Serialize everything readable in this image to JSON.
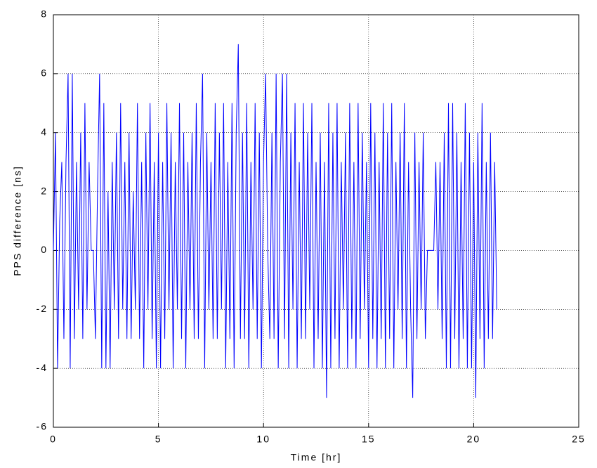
{
  "chart_data": {
    "type": "line",
    "xlabel": "Time [hr]",
    "ylabel": "PPS difference [ns]",
    "xlim": [
      0,
      25
    ],
    "xticks": [
      0,
      5,
      10,
      15,
      20,
      25
    ],
    "ylim": [
      -6,
      8
    ],
    "yticks": [
      -6,
      -4,
      -2,
      0,
      2,
      4,
      6,
      8
    ],
    "grid": true,
    "color": "#0000ff",
    "x": [
      0,
      0.1,
      0.2,
      0.3,
      0.4,
      0.5,
      0.6,
      0.7,
      0.8,
      0.9,
      1,
      1.1,
      1.2,
      1.3,
      1.4,
      1.5,
      1.6,
      1.7,
      1.8,
      1.9,
      2,
      2.1,
      2.2,
      2.3,
      2.4,
      2.5,
      2.6,
      2.7,
      2.8,
      2.9,
      3,
      3.1,
      3.2,
      3.3,
      3.4,
      3.5,
      3.6,
      3.7,
      3.8,
      3.9,
      4,
      4.1,
      4.2,
      4.3,
      4.4,
      4.5,
      4.6,
      4.7,
      4.8,
      4.9,
      5,
      5.1,
      5.2,
      5.3,
      5.4,
      5.5,
      5.6,
      5.7,
      5.8,
      5.9,
      6,
      6.1,
      6.2,
      6.3,
      6.4,
      6.5,
      6.6,
      6.7,
      6.8,
      6.9,
      7,
      7.1,
      7.2,
      7.3,
      7.4,
      7.5,
      7.6,
      7.7,
      7.8,
      7.9,
      8,
      8.1,
      8.2,
      8.3,
      8.4,
      8.5,
      8.6,
      8.7,
      8.8,
      8.9,
      9,
      9.1,
      9.2,
      9.3,
      9.4,
      9.5,
      9.6,
      9.7,
      9.8,
      9.9,
      10,
      10.1,
      10.2,
      10.3,
      10.4,
      10.5,
      10.6,
      10.7,
      10.8,
      10.9,
      11,
      11.1,
      11.2,
      11.3,
      11.4,
      11.5,
      11.6,
      11.7,
      11.8,
      11.9,
      12,
      12.1,
      12.2,
      12.3,
      12.4,
      12.5,
      12.6,
      12.7,
      12.8,
      12.9,
      13,
      13.1,
      13.2,
      13.3,
      13.4,
      13.5,
      13.6,
      13.7,
      13.8,
      13.9,
      14,
      14.1,
      14.2,
      14.3,
      14.4,
      14.5,
      14.6,
      14.7,
      14.8,
      14.9,
      15,
      15.1,
      15.2,
      15.3,
      15.4,
      15.5,
      15.6,
      15.7,
      15.8,
      15.9,
      16,
      16.1,
      16.2,
      16.3,
      16.4,
      16.5,
      16.6,
      16.7,
      16.8,
      16.9,
      17,
      17.1,
      17.2,
      17.3,
      17.4,
      17.5,
      17.6,
      17.7,
      17.8,
      17.9,
      18,
      18.1,
      18.2,
      18.3,
      18.4,
      18.5,
      18.6,
      18.7,
      18.8,
      18.9,
      19,
      19.1,
      19.2,
      19.3,
      19.4,
      19.5,
      19.6,
      19.7,
      19.8,
      19.9,
      20,
      20.1,
      20.2,
      20.3,
      20.4,
      20.5,
      20.6,
      20.7,
      20.8,
      20.9,
      21,
      21.1
    ],
    "values": [
      0,
      4,
      -4,
      1,
      3,
      -3,
      3,
      6,
      -4,
      6,
      -3,
      3,
      -2,
      4,
      -3,
      5,
      -2,
      3,
      0,
      0,
      -3,
      2,
      6,
      -4,
      5,
      -4,
      2,
      -4,
      3,
      -2,
      4,
      -3,
      5,
      -2,
      3,
      -3,
      4,
      -3,
      2,
      -2,
      5,
      -3,
      3,
      -4,
      4,
      -2,
      5,
      -3,
      3,
      -4,
      4,
      -4,
      3,
      -3,
      5,
      -2,
      4,
      -4,
      3,
      -2,
      5,
      -3,
      4,
      -4,
      3,
      -2,
      4,
      -3,
      5,
      -3,
      3,
      6,
      -4,
      4,
      -2,
      3,
      -3,
      5,
      -3,
      4,
      -2,
      5,
      -4,
      3,
      -3,
      5,
      -4,
      4,
      7,
      -3,
      4,
      -3,
      5,
      -4,
      3,
      -2,
      5,
      -3,
      4,
      -4,
      3,
      6,
      0,
      -3,
      4,
      -3,
      6,
      -4,
      3,
      6,
      -3,
      6,
      -4,
      4,
      -2,
      5,
      -4,
      3,
      -3,
      5,
      -3,
      4,
      -2,
      5,
      -4,
      3,
      -3,
      4,
      -4,
      3,
      -5,
      5,
      -4,
      4,
      -3,
      5,
      -4,
      3,
      -2,
      4,
      -4,
      5,
      -3,
      3,
      -4,
      5,
      -3,
      4,
      -2,
      3,
      -4,
      5,
      -3,
      4,
      -4,
      3,
      -3,
      5,
      -4,
      4,
      -3,
      5,
      -4,
      3,
      -2,
      4,
      -3,
      5,
      -4,
      3,
      -2,
      -5,
      4,
      -3,
      3,
      -2,
      4,
      -3,
      0,
      0,
      0,
      0,
      3,
      -2,
      3,
      -3,
      4,
      -4,
      5,
      -4,
      5,
      -3,
      4,
      -4,
      3,
      -3,
      5,
      -4,
      4,
      -4,
      3,
      -5,
      4,
      -3,
      5,
      -4,
      3,
      -3,
      4,
      -3,
      3,
      -2
    ]
  }
}
